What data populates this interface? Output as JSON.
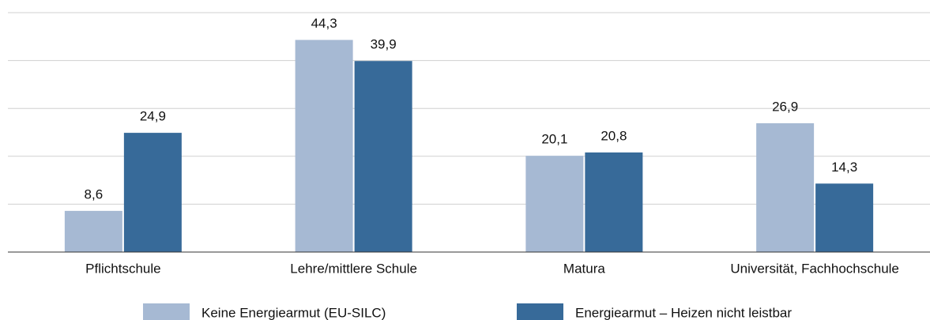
{
  "chart_data": {
    "type": "bar",
    "categories": [
      "Pflichtschule",
      "Lehre/mittlere Schule",
      "Matura",
      "Universität, Fachhochschule"
    ],
    "series": [
      {
        "name": "Keine Energiearmut (EU-SILC)",
        "color": "#a6b9d3",
        "values": [
          8.6,
          44.3,
          20.1,
          26.9
        ],
        "value_labels": [
          "8,6",
          "44,3",
          "20,1",
          "26,9"
        ]
      },
      {
        "name": "Energiearmut – Heizen nicht leistbar",
        "color": "#376a99",
        "values": [
          24.9,
          39.9,
          20.8,
          14.3
        ],
        "value_labels": [
          "24,9",
          "39,9",
          "20,8",
          "14,3"
        ]
      }
    ],
    "ylim": [
      0,
      50
    ],
    "yticks": [
      0,
      10,
      20,
      30,
      40,
      50
    ],
    "grid": true
  }
}
